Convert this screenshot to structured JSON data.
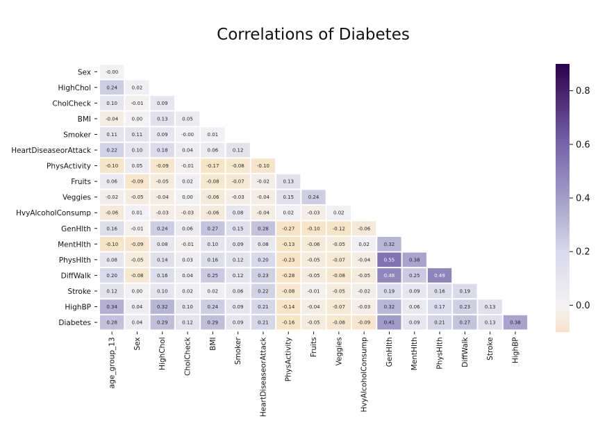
{
  "chart_data": {
    "type": "heatmap",
    "title": "Correlations of Diabetes",
    "mask": "upper-triangle",
    "color_scale": {
      "name": "PuOr",
      "vmin": -0.1,
      "vmax": 0.9,
      "stops": [
        {
          "v": -0.1,
          "color": "#f8e4c6"
        },
        {
          "v": 0.0,
          "color": "#f3f1f4"
        },
        {
          "v": 0.2,
          "color": "#d8d9ea"
        },
        {
          "v": 0.4,
          "color": "#a39ec9"
        },
        {
          "v": 0.6,
          "color": "#7664a9"
        },
        {
          "v": 0.9,
          "color": "#2d004b"
        }
      ],
      "ticks": [
        0.0,
        0.2,
        0.4,
        0.6,
        0.8
      ],
      "tick_labels": [
        "0.0",
        "0.2",
        "0.4",
        "0.6",
        "0.8"
      ]
    },
    "x_labels": [
      "age_group_13",
      "Sex",
      "HighChol",
      "CholCheck",
      "BMI",
      "Smoker",
      "HeartDiseaseorAttack",
      "PhysActivity",
      "Fruits",
      "Veggies",
      "HvyAlcoholConsump",
      "GenHlth",
      "MentHlth",
      "PhysHlth",
      "DiffWalk",
      "Stroke",
      "HighBP"
    ],
    "y_labels": [
      "Sex",
      "HighChol",
      "CholCheck",
      "BMI",
      "Smoker",
      "HeartDiseaseorAttack",
      "PhysActivity",
      "Fruits",
      "Veggies",
      "HvyAlcoholConsump",
      "GenHlth",
      "MentHlth",
      "PhysHlth",
      "DiffWalk",
      "Stroke",
      "HighBP",
      "Diabetes"
    ],
    "rows": [
      [
        "-0.00"
      ],
      [
        "0.24",
        "0.02"
      ],
      [
        "0.10",
        "-0.01",
        "0.09"
      ],
      [
        "-0.04",
        "0.00",
        "0.13",
        "0.05"
      ],
      [
        "0.11",
        "0.11",
        "0.09",
        "-0.00",
        "0.01"
      ],
      [
        "0.22",
        "0.10",
        "0.18",
        "0.04",
        "0.06",
        "0.12"
      ],
      [
        "-0.10",
        "0.05",
        "-0.09",
        "-0.01",
        "-0.17",
        "-0.08",
        "-0.10"
      ],
      [
        "0.06",
        "-0.09",
        "-0.05",
        "0.02",
        "-0.08",
        "-0.07",
        "-0.02",
        "0.13"
      ],
      [
        "-0.02",
        "-0.05",
        "-0.04",
        "0.00",
        "-0.06",
        "-0.03",
        "-0.04",
        "0.15",
        "0.24"
      ],
      [
        "-0.06",
        "0.01",
        "-0.03",
        "-0.03",
        "-0.06",
        "0.08",
        "-0.04",
        "0.02",
        "-0.03",
        "0.02"
      ],
      [
        "0.16",
        "-0.01",
        "0.24",
        "0.06",
        "0.27",
        "0.15",
        "0.28",
        "-0.27",
        "-0.10",
        "-0.12",
        "-0.06"
      ],
      [
        "-0.10",
        "-0.09",
        "0.08",
        "-0.01",
        "0.10",
        "0.09",
        "0.08",
        "-0.13",
        "-0.06",
        "-0.05",
        "0.02",
        "0.32"
      ],
      [
        "0.08",
        "-0.05",
        "0.14",
        "0.03",
        "0.16",
        "0.12",
        "0.20",
        "-0.23",
        "-0.05",
        "-0.07",
        "-0.04",
        "0.55",
        "0.38"
      ],
      [
        "0.20",
        "-0.08",
        "0.16",
        "0.04",
        "0.25",
        "0.12",
        "0.23",
        "-0.28",
        "-0.05",
        "-0.08",
        "-0.05",
        "0.48",
        "0.25",
        "0.49"
      ],
      [
        "0.12",
        "0.00",
        "0.10",
        "0.02",
        "0.02",
        "0.06",
        "0.22",
        "-0.08",
        "-0.01",
        "-0.05",
        "-0.02",
        "0.19",
        "0.09",
        "0.16",
        "0.19"
      ],
      [
        "0.34",
        "0.04",
        "0.32",
        "0.10",
        "0.24",
        "0.09",
        "0.21",
        "-0.14",
        "-0.04",
        "-0.07",
        "-0.03",
        "0.32",
        "0.06",
        "0.17",
        "0.23",
        "0.13"
      ],
      [
        "0.28",
        "0.04",
        "0.29",
        "0.12",
        "0.29",
        "0.09",
        "0.21",
        "-0.16",
        "-0.05",
        "-0.08",
        "-0.09",
        "0.41",
        "0.09",
        "0.21",
        "0.27",
        "0.13",
        "0.38"
      ]
    ]
  }
}
